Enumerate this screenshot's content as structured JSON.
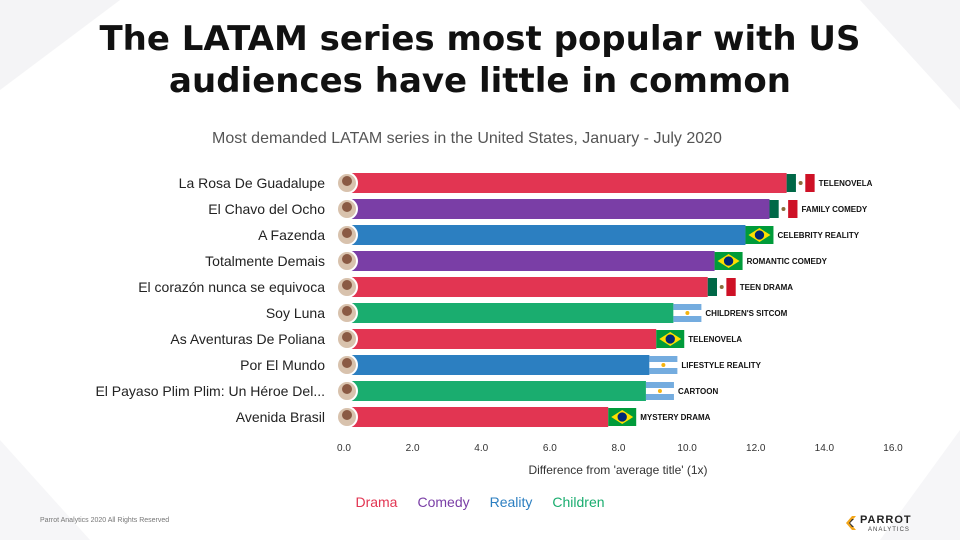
{
  "title": "The LATAM series most popular with US audiences have little in common",
  "subtitle": "Most demanded LATAM series in the United States, January - July 2020",
  "footer": "Parrot Analytics 2020 All Rights Reserved",
  "logo": {
    "name": "PARROT",
    "sub": "ANALYTICS"
  },
  "colors": {
    "Drama": "#e23552",
    "Comedy": "#7a3ea6",
    "Reality": "#2c7fc1",
    "Children": "#1aad6f"
  },
  "legend": [
    "Drama",
    "Comedy",
    "Reality",
    "Children"
  ],
  "chart_data": {
    "type": "bar",
    "orientation": "horizontal",
    "xlabel": "Difference from 'average title' (1x)",
    "xlim": [
      0,
      16
    ],
    "xticks": [
      "0.0",
      "2.0",
      "4.0",
      "6.0",
      "8.0",
      "10.0",
      "12.0",
      "14.0",
      "16.0"
    ],
    "grid": false,
    "legend_position": "bottom",
    "items": [
      {
        "label": "La Rosa De Guadalupe",
        "value": 12.9,
        "category": "Drama",
        "genre": "TELENOVELA",
        "flag": "mexico"
      },
      {
        "label": "El Chavo del Ocho",
        "value": 12.4,
        "category": "Comedy",
        "genre": "FAMILY COMEDY",
        "flag": "mexico"
      },
      {
        "label": "A Fazenda",
        "value": 11.7,
        "category": "Reality",
        "genre": "CELEBRITY REALITY",
        "flag": "brazil"
      },
      {
        "label": "Totalmente Demais",
        "value": 10.8,
        "category": "Comedy",
        "genre": "ROMANTIC COMEDY",
        "flag": "brazil"
      },
      {
        "label": "El corazón nunca se equivoca",
        "value": 10.6,
        "category": "Drama",
        "genre": "TEEN DRAMA",
        "flag": "mexico"
      },
      {
        "label": "Soy Luna",
        "value": 9.6,
        "category": "Children",
        "genre": "CHILDREN'S SITCOM",
        "flag": "argentina"
      },
      {
        "label": "As Aventuras De Poliana",
        "value": 9.1,
        "category": "Drama",
        "genre": "TELENOVELA",
        "flag": "brazil"
      },
      {
        "label": "Por El Mundo",
        "value": 8.9,
        "category": "Reality",
        "genre": "LIFESTYLE REALITY",
        "flag": "argentina"
      },
      {
        "label": "El Payaso Plim Plim: Un Héroe Del...",
        "value": 8.8,
        "category": "Children",
        "genre": "CARTOON",
        "flag": "argentina"
      },
      {
        "label": "Avenida Brasil",
        "value": 7.7,
        "category": "Drama",
        "genre": "MYSTERY DRAMA",
        "flag": "brazil"
      }
    ]
  }
}
